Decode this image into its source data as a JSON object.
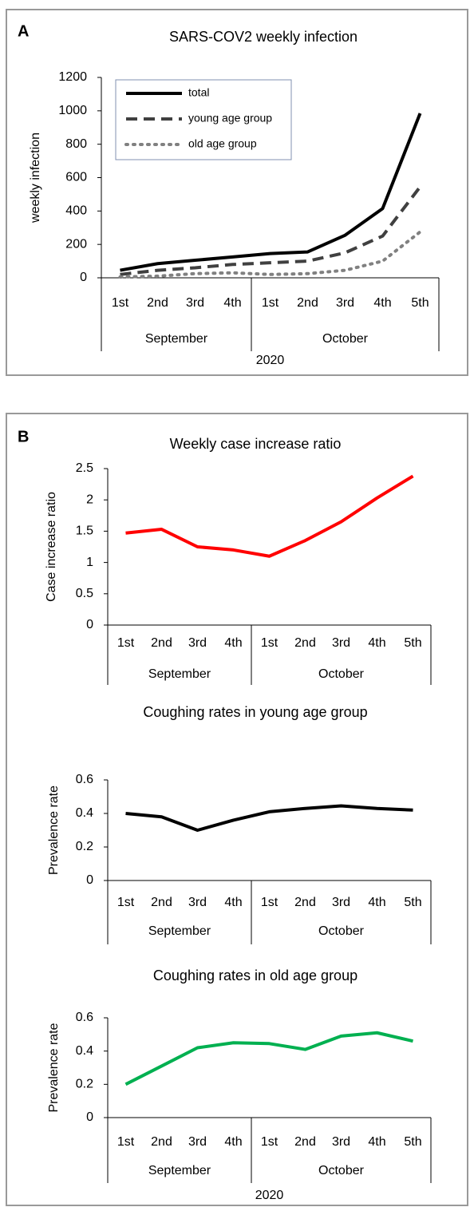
{
  "chart_data": [
    {
      "type": "line",
      "panel": "A",
      "title": "SARS-COV2 weekly infection",
      "ylabel": "weekly infection",
      "xlabel": "2020",
      "groups": [
        {
          "label": "September",
          "categories": [
            "1st",
            "2nd",
            "3rd",
            "4th"
          ]
        },
        {
          "label": "October",
          "categories": [
            "1st",
            "2nd",
            "3rd",
            "4th",
            "5th"
          ]
        }
      ],
      "series": [
        {
          "name": "total",
          "color": "#000000",
          "line_style": "solid",
          "values": [
            45,
            85,
            105,
            125,
            145,
            155,
            255,
            415,
            985
          ]
        },
        {
          "name": "young age group",
          "color": "#404040",
          "line_style": "dashed",
          "values": [
            20,
            45,
            60,
            80,
            90,
            100,
            150,
            250,
            545
          ]
        },
        {
          "name": "old age group",
          "color": "#808080",
          "line_style": "dotted",
          "values": [
            5,
            10,
            25,
            30,
            20,
            25,
            45,
            100,
            275
          ]
        }
      ],
      "ylim": [
        0,
        1200
      ],
      "yticks": [
        0,
        200,
        400,
        600,
        800,
        1000,
        1200
      ],
      "legend": "upper left"
    },
    {
      "type": "line",
      "panel": "B",
      "title": "Weekly case increase ratio",
      "ylabel": "Case increase ratio",
      "groups": [
        {
          "label": "September",
          "categories": [
            "1st",
            "2nd",
            "3rd",
            "4th"
          ]
        },
        {
          "label": "October",
          "categories": [
            "1st",
            "2nd",
            "3rd",
            "4th",
            "5th"
          ]
        }
      ],
      "values": [
        1.47,
        1.53,
        1.25,
        1.2,
        1.1,
        1.35,
        1.65,
        2.03,
        2.38
      ],
      "color": "#ff0000",
      "ylim": [
        0,
        2.5
      ],
      "yticks": [
        0,
        0.5,
        1,
        1.5,
        2,
        2.5
      ]
    },
    {
      "type": "line",
      "title": "Coughing rates in young age group",
      "ylabel": "Prevalence rate",
      "groups": [
        {
          "label": "September",
          "categories": [
            "1st",
            "2nd",
            "3rd",
            "4th"
          ]
        },
        {
          "label": "October",
          "categories": [
            "1st",
            "2nd",
            "3rd",
            "4th",
            "5th"
          ]
        }
      ],
      "values": [
        0.4,
        0.38,
        0.3,
        0.36,
        0.41,
        0.43,
        0.445,
        0.43,
        0.42
      ],
      "color": "#000000",
      "ylim": [
        0,
        0.6
      ],
      "yticks": [
        0,
        0.2,
        0.4,
        0.6
      ]
    },
    {
      "type": "line",
      "title": "Coughing rates in old age group",
      "ylabel": "Prevalence rate",
      "xlabel": "2020",
      "groups": [
        {
          "label": "September",
          "categories": [
            "1st",
            "2nd",
            "3rd",
            "4th"
          ]
        },
        {
          "label": "October",
          "categories": [
            "1st",
            "2nd",
            "3rd",
            "4th",
            "5th"
          ]
        }
      ],
      "values": [
        0.2,
        0.31,
        0.42,
        0.45,
        0.445,
        0.41,
        0.49,
        0.51,
        0.46
      ],
      "color": "#00b050",
      "ylim": [
        0,
        0.6
      ],
      "yticks": [
        0,
        0.2,
        0.4,
        0.6
      ]
    }
  ]
}
